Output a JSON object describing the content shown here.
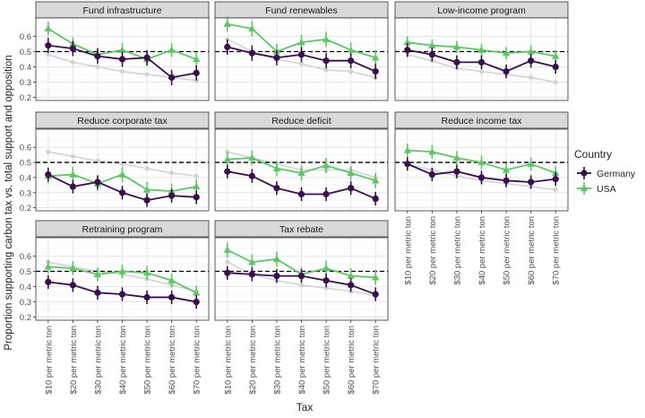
{
  "chart_data": {
    "type": "line",
    "xlabel": "Tax",
    "ylabel": "Proportion supporting carbon tax vs. total support and opposition",
    "ylim": [
      0.18,
      0.72
    ],
    "yticks": [
      0.2,
      0.3,
      0.4,
      0.5,
      0.6
    ],
    "ytick_labels": [
      "0.2",
      "0.3",
      "0.4",
      "0.5",
      "0.6"
    ],
    "categories": [
      "$10 per metric ton",
      "$20 per metric ton",
      "$30 per metric ton",
      "$40 per metric ton",
      "$50 per metric ton",
      "$60 per metric ton",
      "$70 per metric ton"
    ],
    "reference_line": 0.5,
    "grid": true,
    "legend": {
      "title": "Country",
      "placement": "right",
      "entries": [
        {
          "name": "Germany",
          "color": "#3b0f4f"
        },
        {
          "name": "USA",
          "color": "#5cc863"
        }
      ]
    },
    "baseline_color": "#d3d3d3",
    "panels": [
      {
        "title": "Fund infrastructure",
        "baseline": [
          0.48,
          0.43,
          0.4,
          0.37,
          0.35,
          0.33,
          0.31
        ],
        "series": [
          {
            "name": "Germany",
            "values": [
              0.54,
              0.52,
              0.47,
              0.45,
              0.46,
              0.33,
              0.36
            ],
            "err": 0.05
          },
          {
            "name": "USA",
            "values": [
              0.65,
              0.55,
              0.48,
              0.51,
              0.45,
              0.51,
              0.45
            ],
            "err": 0.045
          }
        ]
      },
      {
        "title": "Fund renewables",
        "baseline": [
          0.58,
          0.5,
          0.45,
          0.42,
          0.38,
          0.37,
          0.33
        ],
        "series": [
          {
            "name": "Germany",
            "values": [
              0.53,
              0.49,
              0.46,
              0.48,
              0.44,
              0.44,
              0.37
            ],
            "err": 0.05
          },
          {
            "name": "USA",
            "values": [
              0.68,
              0.65,
              0.5,
              0.56,
              0.58,
              0.51,
              0.46
            ],
            "err": 0.05
          }
        ]
      },
      {
        "title": "Low-income program",
        "baseline": [
          0.48,
          0.44,
          0.39,
          0.37,
          0.35,
          0.33,
          0.3
        ],
        "series": [
          {
            "name": "Germany",
            "values": [
              0.51,
              0.48,
              0.43,
              0.43,
              0.37,
              0.44,
              0.4
            ],
            "err": 0.045
          },
          {
            "name": "USA",
            "values": [
              0.56,
              0.54,
              0.53,
              0.51,
              0.49,
              0.5,
              0.47
            ],
            "err": 0.04
          }
        ]
      },
      {
        "title": "Reduce corporate tax",
        "baseline": [
          0.57,
          0.54,
          0.51,
          0.49,
          0.46,
          0.43,
          0.41
        ],
        "series": [
          {
            "name": "Germany",
            "values": [
              0.42,
              0.34,
              0.37,
              0.3,
              0.25,
              0.28,
              0.27
            ],
            "err": 0.045
          },
          {
            "name": "USA",
            "values": [
              0.41,
              0.42,
              0.36,
              0.42,
              0.32,
              0.31,
              0.34
            ],
            "err": 0.05
          }
        ]
      },
      {
        "title": "Reduce deficit",
        "baseline": [
          0.57,
          0.53,
          0.49,
          0.45,
          0.45,
          0.45,
          0.4
        ],
        "series": [
          {
            "name": "Germany",
            "values": [
              0.44,
              0.41,
              0.33,
              0.29,
              0.29,
              0.33,
              0.26
            ],
            "err": 0.045
          },
          {
            "name": "USA",
            "values": [
              0.52,
              0.53,
              0.46,
              0.43,
              0.48,
              0.43,
              0.38
            ],
            "err": 0.05
          }
        ]
      },
      {
        "title": "Reduce income tax",
        "baseline": [
          0.49,
          0.45,
          0.41,
          0.38,
          0.36,
          0.34,
          0.32
        ],
        "series": [
          {
            "name": "Germany",
            "values": [
              0.49,
              0.42,
              0.44,
              0.4,
              0.38,
              0.37,
              0.39
            ],
            "err": 0.045
          },
          {
            "name": "USA",
            "values": [
              0.58,
              0.57,
              0.53,
              0.5,
              0.45,
              0.49,
              0.43
            ],
            "err": 0.045
          }
        ]
      },
      {
        "title": "Retraining program",
        "baseline": [
          0.56,
          0.53,
          0.5,
          0.48,
          0.45,
          0.41,
          0.37
        ],
        "series": [
          {
            "name": "Germany",
            "values": [
              0.43,
              0.41,
              0.36,
              0.35,
              0.33,
              0.33,
              0.3
            ],
            "err": 0.045
          },
          {
            "name": "USA",
            "values": [
              0.53,
              0.52,
              0.48,
              0.5,
              0.49,
              0.44,
              0.36
            ],
            "err": 0.045
          }
        ]
      },
      {
        "title": "Tax rebate",
        "baseline": [
          0.56,
          0.48,
          0.44,
          0.41,
          0.39,
          0.37,
          0.34
        ],
        "series": [
          {
            "name": "Germany",
            "values": [
              0.49,
              0.48,
              0.47,
              0.47,
              0.44,
              0.41,
              0.35
            ],
            "err": 0.045
          },
          {
            "name": "USA",
            "values": [
              0.64,
              0.56,
              0.58,
              0.48,
              0.52,
              0.47,
              0.46
            ],
            "err": 0.05
          }
        ]
      }
    ]
  }
}
